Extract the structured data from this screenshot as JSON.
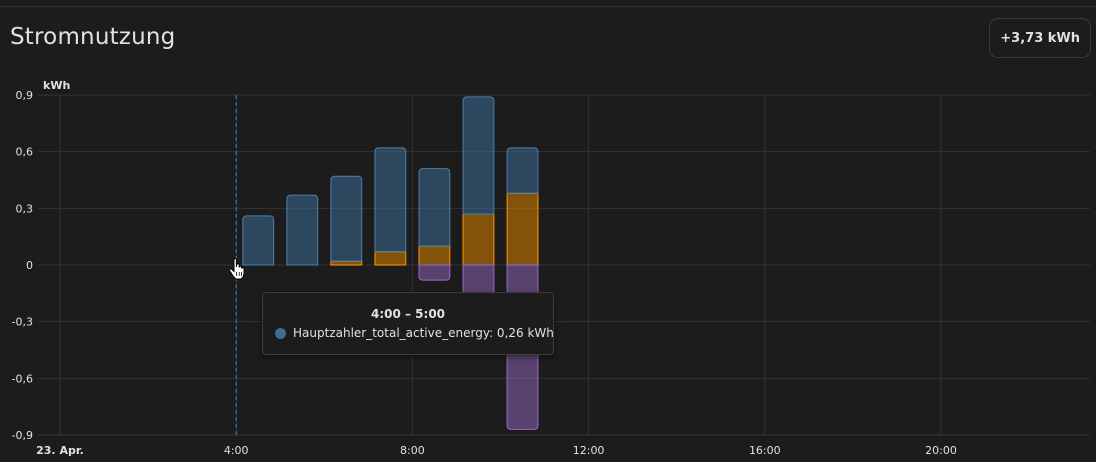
{
  "card": {
    "title": "Stromnutzung",
    "total": "+3,73 kWh"
  },
  "colors": {
    "grid_consumption": "#4d7ea8",
    "solar": "#ff9800",
    "grid_return": "#9b6bc7",
    "hover_line": "#2f8fc4"
  },
  "chart_data": {
    "type": "bar",
    "stacked": true,
    "unit": "kWh",
    "ylabel": "kWh",
    "ylim": [
      -0.9,
      0.9
    ],
    "yticks": [
      0.9,
      0.6,
      0.3,
      0,
      -0.3,
      -0.6,
      -0.9
    ],
    "ytick_labels": [
      "0,9",
      "0,6",
      "0,3",
      "0",
      "-0,3",
      "-0,6",
      "-0,9"
    ],
    "xlim": [
      0,
      24
    ],
    "xticks": [
      0,
      4,
      8,
      12,
      16,
      20
    ],
    "xtick_labels": [
      "23. Apr.",
      "4:00",
      "8:00",
      "12:00",
      "16:00",
      "20:00"
    ],
    "x_hours": [
      4,
      5,
      6,
      7,
      8,
      9,
      10
    ],
    "series": [
      {
        "name": "Hauptzahler_total_active_energy",
        "color_key": "grid_consumption",
        "values": [
          0.26,
          0.37,
          0.45,
          0.55,
          0.41,
          0.62,
          0.24
        ]
      },
      {
        "color_key": "solar",
        "values": [
          0,
          0,
          0.02,
          0.07,
          0.1,
          0.27,
          0.38
        ]
      },
      {
        "color_key": "grid_return",
        "values": [
          0,
          0,
          0,
          0,
          -0.08,
          -0.3,
          -0.87
        ]
      }
    ],
    "grid": true,
    "hover_hour": 4
  },
  "tooltip": {
    "title": "4:00 – 5:00",
    "text": "Hauptzahler_total_active_energy: 0,26 kWh"
  }
}
